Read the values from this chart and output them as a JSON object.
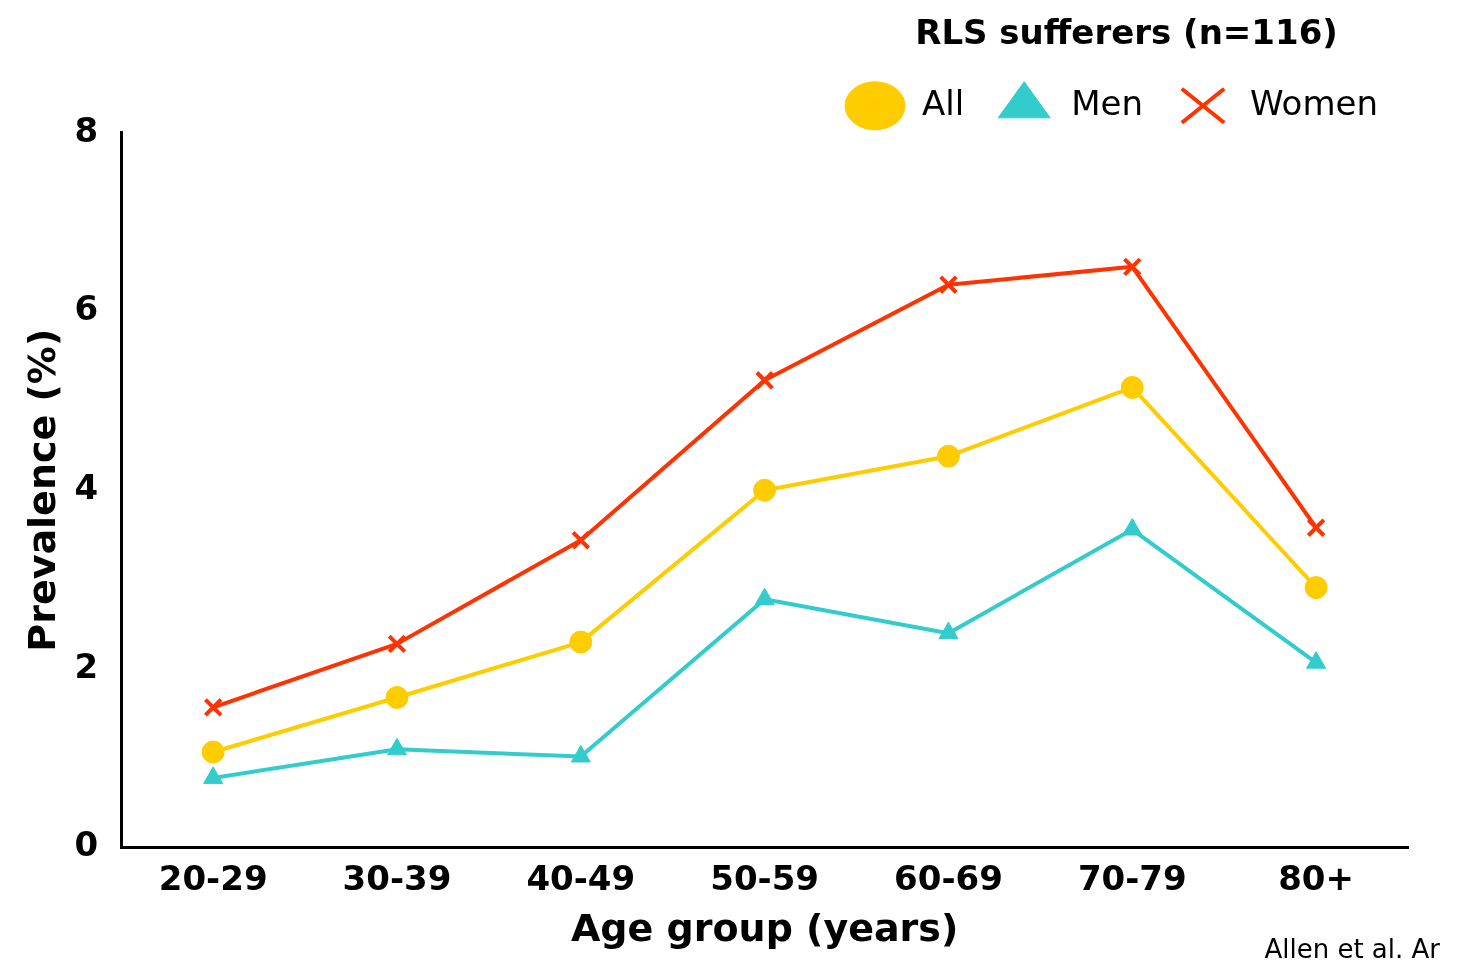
{
  "chart_data": {
    "type": "line",
    "xlabel": "Age group (years)",
    "ylabel": "Prevalence (%)",
    "legend_title": "RLS sufferers (n=116)",
    "categories": [
      "20-29",
      "30-39",
      "40-49",
      "50-59",
      "60-69",
      "70-79",
      "80+"
    ],
    "series": [
      {
        "name": "All",
        "color": "#ffcc00",
        "marker": "circle",
        "values": [
          1.07,
          1.68,
          2.3,
          4.0,
          4.38,
          5.15,
          2.91
        ]
      },
      {
        "name": "Men",
        "color": "#33cccc",
        "marker": "triangle",
        "values": [
          0.78,
          1.1,
          1.02,
          2.78,
          2.4,
          3.56,
          2.07
        ]
      },
      {
        "name": "Women",
        "color": "#ff3300",
        "marker": "cross",
        "values": [
          1.57,
          2.28,
          3.44,
          5.23,
          6.3,
          6.5,
          3.58
        ]
      }
    ],
    "ylim": [
      0,
      8
    ],
    "yticks": [
      0,
      2,
      4,
      6,
      8
    ],
    "grid": false,
    "legend": "top right",
    "annotations": [
      "Allen et al. Ar"
    ]
  }
}
